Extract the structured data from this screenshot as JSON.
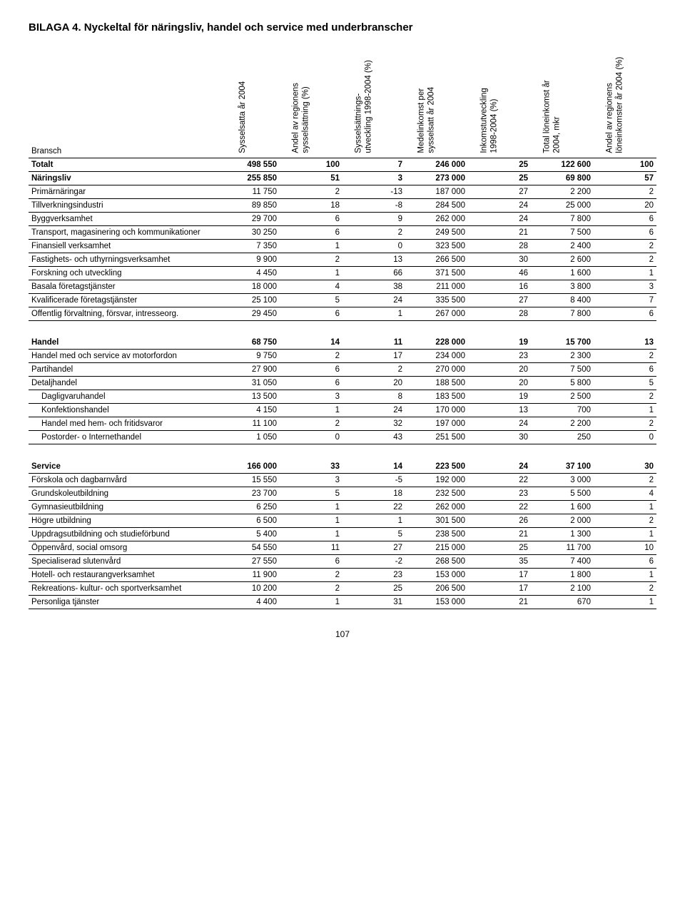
{
  "title": "BILAGA 4. Nyckeltal för näringsliv, handel och service med underbranscher",
  "page_number": "107",
  "branch_label": "Bransch",
  "columns": [
    [
      "Sysselsatta år 2004"
    ],
    [
      "Andel av regionens",
      "sysselsättning (%)"
    ],
    [
      "Sysselsättnings-",
      "utveckling 1998-2004 (%)"
    ],
    [
      "Medelinkomst per",
      "sysselsatt år 2004"
    ],
    [
      "Inkomstutveckling",
      "1998-2004 (%)"
    ],
    [
      "Total löneinkomst år",
      "2004, mkr"
    ],
    [
      "Andel av regionens",
      "löneinkomster år 2004 (%)"
    ]
  ],
  "rows": [
    {
      "label": "Totalt",
      "bold": true,
      "vals": [
        "498 550",
        "100",
        "7",
        "246 000",
        "25",
        "122 600",
        "100"
      ]
    },
    {
      "label": "Näringsliv",
      "bold": true,
      "vals": [
        "255 850",
        "51",
        "3",
        "273 000",
        "25",
        "69 800",
        "57"
      ]
    },
    {
      "label": "Primärnäringar",
      "vals": [
        "11 750",
        "2",
        "-13",
        "187 000",
        "27",
        "2 200",
        "2"
      ]
    },
    {
      "label": "Tillverkningsindustri",
      "vals": [
        "89 850",
        "18",
        "-8",
        "284 500",
        "24",
        "25 000",
        "20"
      ]
    },
    {
      "label": "Byggverksamhet",
      "vals": [
        "29 700",
        "6",
        "9",
        "262 000",
        "24",
        "7 800",
        "6"
      ]
    },
    {
      "label": "Transport, magasinering och kommunikationer",
      "vals": [
        "30 250",
        "6",
        "2",
        "249 500",
        "21",
        "7 500",
        "6"
      ]
    },
    {
      "label": "Finansiell verksamhet",
      "vals": [
        "7 350",
        "1",
        "0",
        "323 500",
        "28",
        "2 400",
        "2"
      ]
    },
    {
      "label": "Fastighets- och uthyrningsverksamhet",
      "vals": [
        "9 900",
        "2",
        "13",
        "266 500",
        "30",
        "2 600",
        "2"
      ]
    },
    {
      "label": "Forskning och utveckling",
      "vals": [
        "4 450",
        "1",
        "66",
        "371 500",
        "46",
        "1 600",
        "1"
      ]
    },
    {
      "label": "Basala företagstjänster",
      "vals": [
        "18 000",
        "4",
        "38",
        "211 000",
        "16",
        "3 800",
        "3"
      ]
    },
    {
      "label": "Kvalificerade företagstjänster",
      "vals": [
        "25 100",
        "5",
        "24",
        "335 500",
        "27",
        "8 400",
        "7"
      ]
    },
    {
      "label": "Offentlig förvaltning, försvar, intresseorg.",
      "vals": [
        "29 450",
        "6",
        "1",
        "267 000",
        "28",
        "7 800",
        "6"
      ]
    },
    {
      "gap": true
    },
    {
      "label": "Handel",
      "bold": true,
      "vals": [
        "68 750",
        "14",
        "11",
        "228 000",
        "19",
        "15 700",
        "13"
      ]
    },
    {
      "label": "Handel med och service av motorfordon",
      "vals": [
        "9 750",
        "2",
        "17",
        "234 000",
        "23",
        "2 300",
        "2"
      ]
    },
    {
      "label": "Partihandel",
      "vals": [
        "27 900",
        "6",
        "2",
        "270 000",
        "20",
        "7 500",
        "6"
      ]
    },
    {
      "label": "Detaljhandel",
      "vals": [
        "31 050",
        "6",
        "20",
        "188 500",
        "20",
        "5 800",
        "5"
      ]
    },
    {
      "label": "Dagligvaruhandel",
      "indent": 1,
      "vals": [
        "13 500",
        "3",
        "8",
        "183 500",
        "19",
        "2 500",
        "2"
      ]
    },
    {
      "label": "Konfektionshandel",
      "indent": 1,
      "vals": [
        "4 150",
        "1",
        "24",
        "170 000",
        "13",
        "700",
        "1"
      ]
    },
    {
      "label": "Handel med hem- och fritidsvaror",
      "indent": 1,
      "vals": [
        "11 100",
        "2",
        "32",
        "197 000",
        "24",
        "2 200",
        "2"
      ]
    },
    {
      "label": "Postorder- o Internethandel",
      "indent": 1,
      "vals": [
        "1 050",
        "0",
        "43",
        "251 500",
        "30",
        "250",
        "0"
      ]
    },
    {
      "gap": true
    },
    {
      "label": "Service",
      "bold": true,
      "vals": [
        "166 000",
        "33",
        "14",
        "223 500",
        "24",
        "37 100",
        "30"
      ]
    },
    {
      "label": "Förskola och dagbarnvård",
      "vals": [
        "15 550",
        "3",
        "-5",
        "192 000",
        "22",
        "3 000",
        "2"
      ]
    },
    {
      "label": "Grundskoleutbildning",
      "vals": [
        "23 700",
        "5",
        "18",
        "232 500",
        "23",
        "5 500",
        "4"
      ]
    },
    {
      "label": "Gymnasieutbildning",
      "vals": [
        "6 250",
        "1",
        "22",
        "262 000",
        "22",
        "1 600",
        "1"
      ]
    },
    {
      "label": "Högre utbildning",
      "vals": [
        "6 500",
        "1",
        "1",
        "301 500",
        "26",
        "2 000",
        "2"
      ]
    },
    {
      "label": "Uppdragsutbildning och studieförbund",
      "vals": [
        "5 400",
        "1",
        "5",
        "238 500",
        "21",
        "1 300",
        "1"
      ]
    },
    {
      "label": "Öppenvård, social omsorg",
      "vals": [
        "54 550",
        "11",
        "27",
        "215 000",
        "25",
        "11 700",
        "10"
      ]
    },
    {
      "label": "Specialiserad slutenvård",
      "vals": [
        "27 550",
        "6",
        "-2",
        "268 500",
        "35",
        "7 400",
        "6"
      ]
    },
    {
      "label": "Hotell- och restaurangverksamhet",
      "vals": [
        "11 900",
        "2",
        "23",
        "153 000",
        "17",
        "1 800",
        "1"
      ]
    },
    {
      "label": "Rekreations- kultur- och sportverksamhet",
      "vals": [
        "10 200",
        "2",
        "25",
        "206 500",
        "17",
        "2 100",
        "2"
      ]
    },
    {
      "label": "Personliga tjänster",
      "vals": [
        "4 400",
        "1",
        "31",
        "153 000",
        "21",
        "670",
        "1"
      ]
    }
  ]
}
